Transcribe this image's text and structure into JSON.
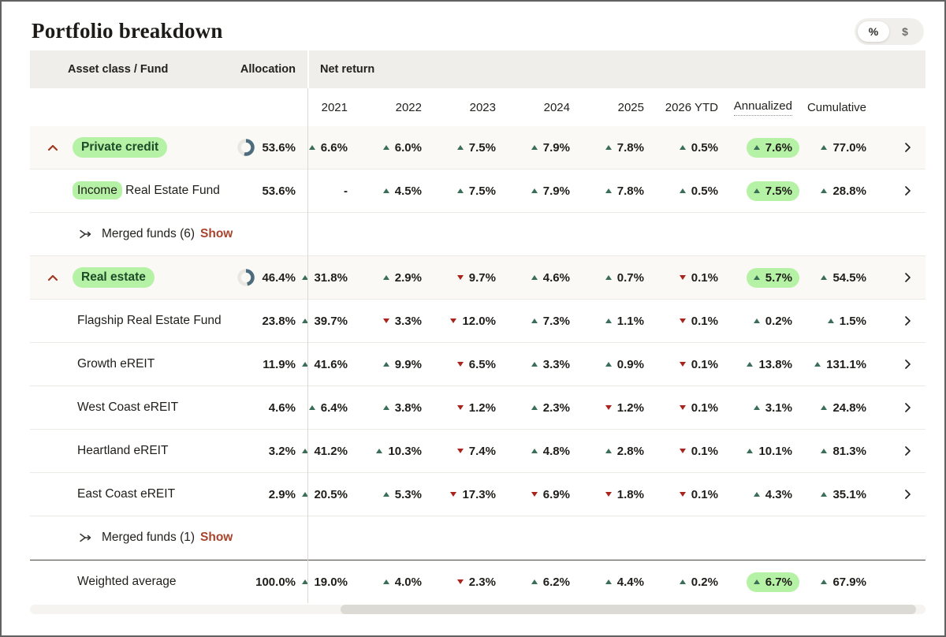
{
  "page": {
    "title": "Portfolio breakdown",
    "unit_toggle": {
      "percent_label": "%",
      "dollar_label": "$",
      "selected": "%"
    }
  },
  "table": {
    "headers": {
      "asset_class": "Asset class / Fund",
      "allocation": "Allocation",
      "net_return": "Net return",
      "periods": [
        "2021",
        "2022",
        "2023",
        "2024",
        "2025",
        "2026 YTD",
        "Annualized",
        "Cumulative"
      ]
    },
    "rows": [
      {
        "type": "group",
        "name": "Private credit",
        "allocation": "53.6%",
        "donut_pct": 53.6,
        "chevron": true,
        "values": [
          {
            "dir": "up",
            "value": "6.6%"
          },
          {
            "dir": "up",
            "value": "6.0%"
          },
          {
            "dir": "up",
            "value": "7.5%"
          },
          {
            "dir": "up",
            "value": "7.9%"
          },
          {
            "dir": "up",
            "value": "7.8%"
          },
          {
            "dir": "up",
            "value": "0.5%"
          },
          {
            "dir": "up",
            "value": "7.6%",
            "highlight": true
          },
          {
            "dir": "up",
            "value": "77.0%"
          }
        ]
      },
      {
        "type": "fund",
        "name_highlight": "Income",
        "name_rest": " Real Estate Fund",
        "allocation": "53.6%",
        "chevron": true,
        "values": [
          {
            "value": "-"
          },
          {
            "dir": "up",
            "value": "4.5%"
          },
          {
            "dir": "up",
            "value": "7.5%"
          },
          {
            "dir": "up",
            "value": "7.9%"
          },
          {
            "dir": "up",
            "value": "7.8%"
          },
          {
            "dir": "up",
            "value": "0.5%"
          },
          {
            "dir": "up",
            "value": "7.5%",
            "highlight": true
          },
          {
            "dir": "up",
            "value": "28.8%"
          }
        ]
      },
      {
        "type": "merged",
        "label": "Merged funds (6)",
        "action": "Show"
      },
      {
        "type": "group",
        "name": "Real estate",
        "allocation": "46.4%",
        "donut_pct": 46.4,
        "chevron": true,
        "values": [
          {
            "dir": "up",
            "value": "31.8%"
          },
          {
            "dir": "up",
            "value": "2.9%"
          },
          {
            "dir": "down",
            "value": "9.7%"
          },
          {
            "dir": "up",
            "value": "4.6%"
          },
          {
            "dir": "up",
            "value": "0.7%"
          },
          {
            "dir": "down",
            "value": "0.1%"
          },
          {
            "dir": "up",
            "value": "5.7%",
            "highlight": true
          },
          {
            "dir": "up",
            "value": "54.5%"
          }
        ]
      },
      {
        "type": "fund",
        "name": "Flagship Real Estate Fund",
        "allocation": "23.8%",
        "chevron": true,
        "values": [
          {
            "dir": "up",
            "value": "39.7%"
          },
          {
            "dir": "down",
            "value": "3.3%"
          },
          {
            "dir": "down",
            "value": "12.0%"
          },
          {
            "dir": "up",
            "value": "7.3%"
          },
          {
            "dir": "up",
            "value": "1.1%"
          },
          {
            "dir": "down",
            "value": "0.1%"
          },
          {
            "dir": "up",
            "value": "0.2%"
          },
          {
            "dir": "up",
            "value": "1.5%"
          }
        ]
      },
      {
        "type": "fund",
        "name": "Growth eREIT",
        "allocation": "11.9%",
        "chevron": true,
        "values": [
          {
            "dir": "up",
            "value": "41.6%"
          },
          {
            "dir": "up",
            "value": "9.9%"
          },
          {
            "dir": "down",
            "value": "6.5%"
          },
          {
            "dir": "up",
            "value": "3.3%"
          },
          {
            "dir": "up",
            "value": "0.9%"
          },
          {
            "dir": "down",
            "value": "0.1%"
          },
          {
            "dir": "up",
            "value": "13.8%"
          },
          {
            "dir": "up",
            "value": "131.1%"
          }
        ]
      },
      {
        "type": "fund",
        "name": "West Coast eREIT",
        "allocation": "4.6%",
        "chevron": true,
        "values": [
          {
            "dir": "up",
            "value": "6.4%"
          },
          {
            "dir": "up",
            "value": "3.8%"
          },
          {
            "dir": "down",
            "value": "1.2%"
          },
          {
            "dir": "up",
            "value": "2.3%"
          },
          {
            "dir": "down",
            "value": "1.2%"
          },
          {
            "dir": "down",
            "value": "0.1%"
          },
          {
            "dir": "up",
            "value": "3.1%"
          },
          {
            "dir": "up",
            "value": "24.8%"
          }
        ]
      },
      {
        "type": "fund",
        "name": "Heartland eREIT",
        "allocation": "3.2%",
        "chevron": true,
        "values": [
          {
            "dir": "up",
            "value": "41.2%"
          },
          {
            "dir": "up",
            "value": "10.3%"
          },
          {
            "dir": "down",
            "value": "7.4%"
          },
          {
            "dir": "up",
            "value": "4.8%"
          },
          {
            "dir": "up",
            "value": "2.8%"
          },
          {
            "dir": "down",
            "value": "0.1%"
          },
          {
            "dir": "up",
            "value": "10.1%"
          },
          {
            "dir": "up",
            "value": "81.3%"
          }
        ]
      },
      {
        "type": "fund",
        "name": "East Coast eREIT",
        "allocation": "2.9%",
        "chevron": true,
        "values": [
          {
            "dir": "up",
            "value": "20.5%"
          },
          {
            "dir": "up",
            "value": "5.3%"
          },
          {
            "dir": "down",
            "value": "17.3%"
          },
          {
            "dir": "down",
            "value": "6.9%"
          },
          {
            "dir": "down",
            "value": "1.8%"
          },
          {
            "dir": "down",
            "value": "0.1%"
          },
          {
            "dir": "up",
            "value": "4.3%"
          },
          {
            "dir": "up",
            "value": "35.1%"
          }
        ]
      },
      {
        "type": "merged",
        "label": "Merged funds (1)",
        "action": "Show"
      },
      {
        "type": "total",
        "name": "Weighted average",
        "allocation": "100.0%",
        "chevron": false,
        "values": [
          {
            "dir": "up",
            "value": "19.0%"
          },
          {
            "dir": "up",
            "value": "4.0%"
          },
          {
            "dir": "down",
            "value": "2.3%"
          },
          {
            "dir": "up",
            "value": "6.2%"
          },
          {
            "dir": "up",
            "value": "4.4%"
          },
          {
            "dir": "up",
            "value": "0.2%"
          },
          {
            "dir": "up",
            "value": "6.7%",
            "highlight": true
          },
          {
            "dir": "up",
            "value": "67.9%"
          }
        ]
      }
    ]
  },
  "colors": {
    "highlight_green": "#b6f2a5",
    "up_green": "#3a6e58",
    "down_red": "#a8241c",
    "rust": "#a8432c",
    "chevron_rust": "#9e3a23",
    "donut_fill": "#4c6b7c",
    "donut_base": "#e9e7e1",
    "header_bg": "#f0eeea",
    "group_row_bg": "#faf9f5"
  }
}
